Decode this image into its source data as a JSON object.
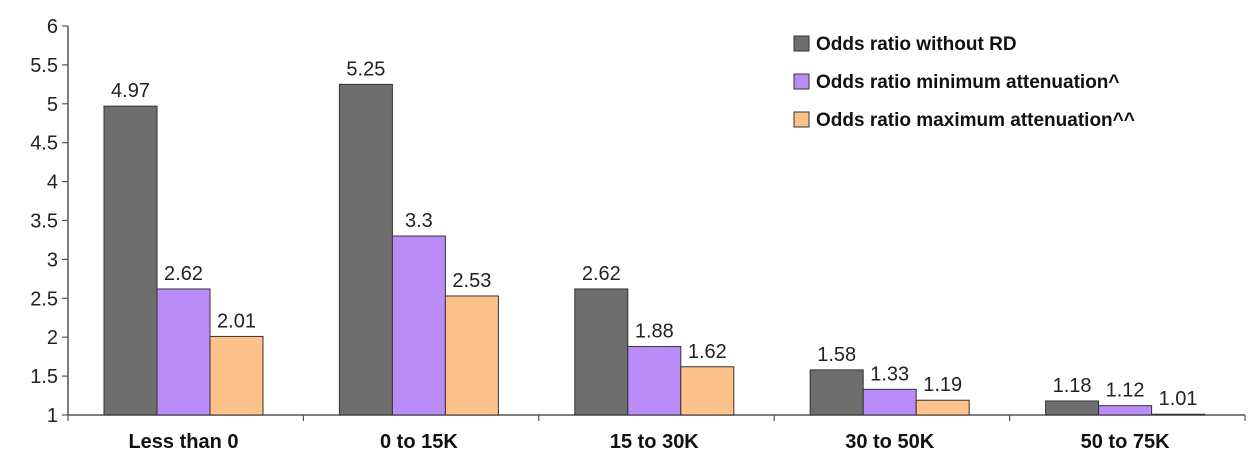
{
  "chart_data": {
    "type": "bar",
    "title": "",
    "xlabel": "",
    "ylabel": "",
    "categories": [
      "Less than 0",
      "0 to 15K",
      "15 to 30K",
      "30 to 50K",
      "50 to 75K"
    ],
    "series": [
      {
        "name": "Odds ratio without RD",
        "color": "#6e6e6e",
        "values": [
          4.97,
          5.25,
          2.62,
          1.58,
          1.18
        ],
        "labels": [
          "4.97",
          "5.25",
          "2.62",
          "1.58",
          "1.18"
        ]
      },
      {
        "name": "Odds ratio minimum attenuation^",
        "color": "#b98cf7",
        "values": [
          2.62,
          3.3,
          1.88,
          1.33,
          1.12
        ],
        "labels": [
          "2.62",
          "3.3",
          "1.88",
          "1.33",
          "1.12"
        ]
      },
      {
        "name": "Odds ratio maximum attenuation^^",
        "color": "#fdc18a",
        "values": [
          2.01,
          2.53,
          1.62,
          1.19,
          1.01
        ],
        "labels": [
          "2.01",
          "2.53",
          "1.62",
          "1.19",
          "1.01"
        ]
      }
    ],
    "y_ticks": [
      "1",
      "1.5",
      "2",
      "2.5",
      "3",
      "3.5",
      "4",
      "4.5",
      "5",
      "5.5",
      "6"
    ],
    "ylim": [
      1,
      6
    ],
    "grid": false,
    "legend_position": "top-right"
  }
}
